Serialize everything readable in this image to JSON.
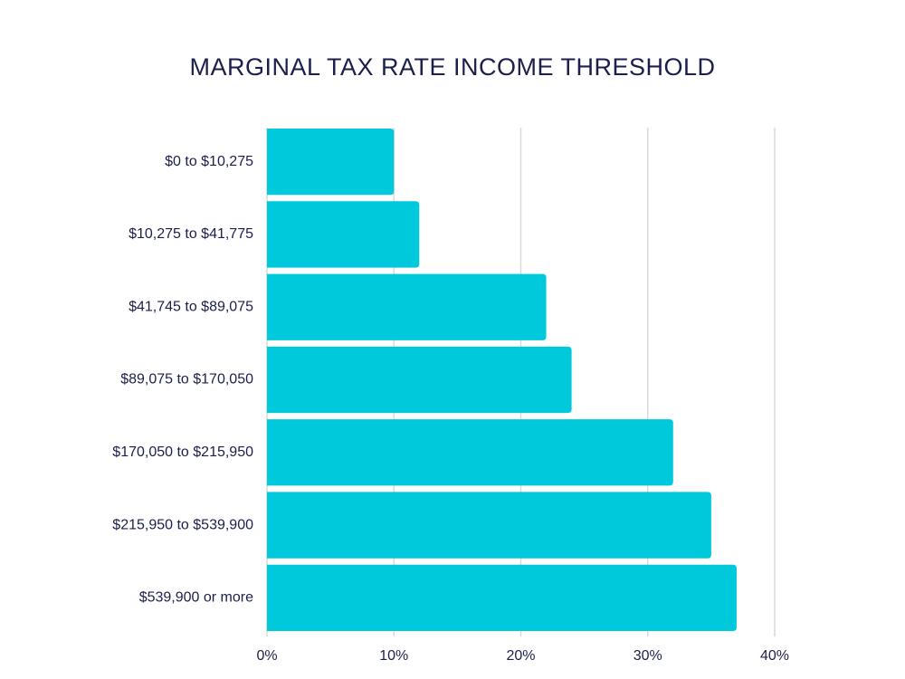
{
  "chart_data": {
    "type": "bar",
    "orientation": "horizontal",
    "title": "MARGINAL TAX RATE INCOME THRESHOLD",
    "categories": [
      "$0 to $10,275",
      "$10,275 to $41,775",
      "$41,745 to $89,075",
      "$89,075 to $170,050",
      "$170,050 to $215,950",
      "$215,950 to $539,900",
      "$539,900 or more"
    ],
    "values": [
      10,
      12,
      22,
      24,
      32,
      35,
      37
    ],
    "color": "#00c9dc",
    "xlim": [
      0,
      40
    ],
    "xticks": [
      {
        "value": 0,
        "label": "0%"
      },
      {
        "value": 10,
        "label": "10%"
      },
      {
        "value": 20,
        "label": "20%"
      },
      {
        "value": 30,
        "label": "30%"
      },
      {
        "value": 40,
        "label": "40%"
      }
    ],
    "grid": true
  }
}
